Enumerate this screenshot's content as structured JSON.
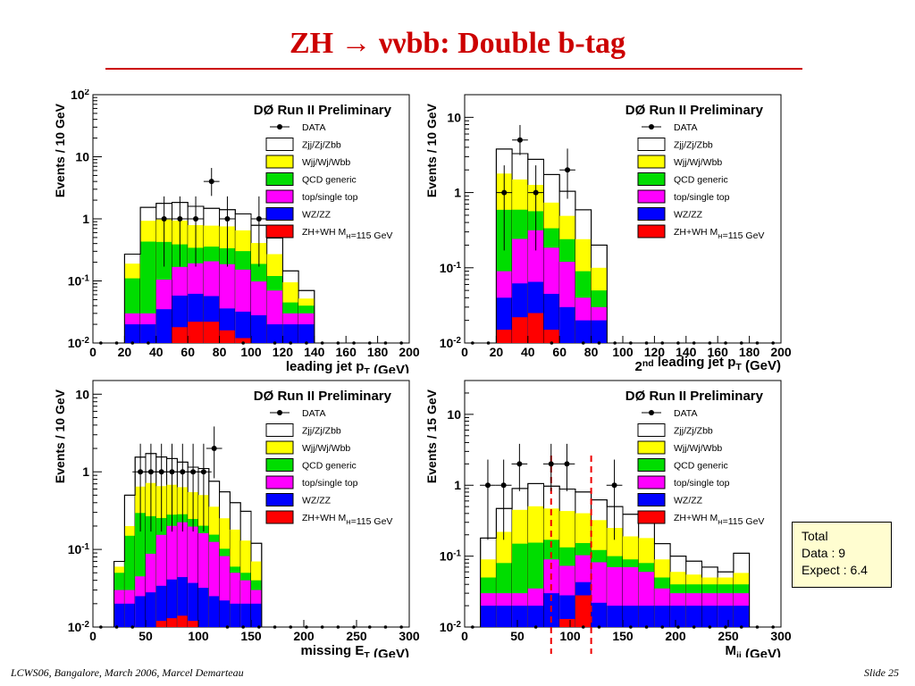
{
  "slide": {
    "title": "ZH → ννbb: Double b-tag",
    "footer_left": "LCWS06, Bangalore, March 2006, Marcel Demarteau",
    "footer_right": "Slide 25"
  },
  "totals": {
    "line1": "Total",
    "line2": "Data : 9",
    "line3": "Expect : 6.4"
  },
  "legend": [
    {
      "label": "DATA",
      "style": "marker"
    },
    {
      "label": "Zjj/Zj/Zbb",
      "color": "#ffffff"
    },
    {
      "label": "Wjj/Wj/Wbb",
      "color": "#ffff00"
    },
    {
      "label": "QCD generic",
      "color": "#00dd00"
    },
    {
      "label": "top/single top",
      "color": "#ff00ff"
    },
    {
      "label": "WZ/ZZ",
      "color": "#0000ff"
    },
    {
      "label": "ZH+WH M_H=115 GeV",
      "color": "#ff0000"
    }
  ],
  "chart_data": [
    {
      "type": "bar",
      "header": "DØ Run II Preliminary",
      "xlabel": "leading jet p_T (GeV)",
      "ylabel": "Events / 10 GeV",
      "xlim": [
        0,
        200
      ],
      "ylim": [
        0.01,
        100
      ],
      "log_y": true,
      "xticks": [
        0,
        20,
        40,
        60,
        80,
        100,
        120,
        140,
        160,
        180,
        200
      ],
      "yticks": [
        {
          "v": 0.01,
          "t": "10^-2"
        },
        {
          "v": 0.1,
          "t": "10^-1"
        },
        {
          "v": 1,
          "t": "1"
        },
        {
          "v": 10,
          "t": "10"
        },
        {
          "v": 100,
          "t": "10^2"
        }
      ],
      "bin_edges": [
        20,
        30,
        40,
        50,
        60,
        70,
        80,
        90,
        100,
        110,
        120,
        130,
        140
      ],
      "stack": {
        "Zjj/Zj/Zbb": [
          0.08,
          0.6,
          0.8,
          0.9,
          0.8,
          0.7,
          0.65,
          0.55,
          0.38,
          0.22,
          0.05,
          0.018
        ],
        "Wjj/Wj/Wbb": [
          0.08,
          0.5,
          0.55,
          0.55,
          0.45,
          0.42,
          0.42,
          0.35,
          0.22,
          0.15,
          0.05,
          0.012
        ],
        "QCD generic": [
          0.08,
          0.4,
          0.32,
          0.22,
          0.15,
          0.15,
          0.15,
          0.15,
          0.09,
          0.05,
          0.015,
          0.01
        ],
        "top/single top": [
          0.01,
          0.01,
          0.07,
          0.11,
          0.13,
          0.15,
          0.15,
          0.12,
          0.07,
          0.05,
          0.01,
          0.01
        ],
        "WZ/ZZ": [
          0.01,
          0.01,
          0.025,
          0.04,
          0.04,
          0.035,
          0.02,
          0.02,
          0.018,
          0.01,
          0.01,
          0.01
        ],
        "ZH+WH M_H=115 GeV": [
          0.01,
          0.01,
          0.01,
          0.018,
          0.022,
          0.022,
          0.016,
          0.012,
          0.01,
          0.01,
          0.01,
          0.01
        ]
      },
      "data_points": [
        {
          "x": 45,
          "y": 1
        },
        {
          "x": 55,
          "y": 1
        },
        {
          "x": 65,
          "y": 1
        },
        {
          "x": 75,
          "y": 4
        },
        {
          "x": 85,
          "y": 1
        },
        {
          "x": 105,
          "y": 1
        }
      ],
      "legend_visible": true
    },
    {
      "type": "bar",
      "header": "DØ Run II Preliminary",
      "xlabel": "2^nd leading jet p_T (GeV)",
      "ylabel": "Events / 10 GeV",
      "xlim": [
        0,
        200
      ],
      "ylim": [
        0.01,
        20
      ],
      "log_y": true,
      "xticks": [
        0,
        20,
        40,
        60,
        80,
        100,
        120,
        140,
        160,
        180,
        200
      ],
      "yticks": [
        {
          "v": 0.01,
          "t": "10^-2"
        },
        {
          "v": 0.1,
          "t": "10^-1"
        },
        {
          "v": 1,
          "t": "1"
        },
        {
          "v": 10,
          "t": "10"
        }
      ],
      "bin_edges": [
        20,
        30,
        40,
        50,
        60,
        70,
        80,
        90
      ],
      "stack": {
        "Zjj/Zj/Zbb": [
          2.0,
          1.8,
          1.5,
          1.0,
          0.55,
          0.35,
          0.1
        ],
        "Wjj/Wj/Wbb": [
          1.2,
          0.9,
          0.7,
          0.4,
          0.25,
          0.15,
          0.05
        ],
        "QCD generic": [
          0.5,
          0.35,
          0.25,
          0.15,
          0.12,
          0.05,
          0.02
        ],
        "top/single top": [
          0.05,
          0.18,
          0.25,
          0.14,
          0.09,
          0.02,
          0.01
        ],
        "WZ/ZZ": [
          0.025,
          0.04,
          0.04,
          0.03,
          0.02,
          0.01,
          0.01
        ],
        "ZH+WH M_H=115 GeV": [
          0.015,
          0.022,
          0.025,
          0.015,
          0.01,
          0.01,
          0.01
        ]
      },
      "data_points": [
        {
          "x": 25,
          "y": 1
        },
        {
          "x": 35,
          "y": 5
        },
        {
          "x": 45,
          "y": 1
        },
        {
          "x": 65,
          "y": 2
        }
      ],
      "legend_visible": true
    },
    {
      "type": "bar",
      "header": "DØ Run II Preliminary",
      "xlabel": "missing E_T (GeV)",
      "ylabel": "Events / 10 GeV",
      "xlim": [
        0,
        300
      ],
      "ylim": [
        0.01,
        15
      ],
      "log_y": true,
      "xticks": [
        0,
        50,
        100,
        150,
        200,
        250,
        300
      ],
      "yticks": [
        {
          "v": 0.01,
          "t": "10^-2"
        },
        {
          "v": 0.1,
          "t": "10^-1"
        },
        {
          "v": 1,
          "t": "1"
        },
        {
          "v": 10,
          "t": "10"
        }
      ],
      "bin_edges": [
        20,
        30,
        40,
        50,
        60,
        70,
        80,
        90,
        100,
        110,
        120,
        130,
        140,
        150,
        160
      ],
      "stack": {
        "Zjj/Zj/Zbb": [
          0.01,
          0.3,
          0.9,
          1.0,
          0.9,
          0.8,
          0.7,
          0.6,
          0.6,
          0.4,
          0.3,
          0.22,
          0.18,
          0.05
        ],
        "Wjj/Wj/Wbb": [
          0.01,
          0.05,
          0.35,
          0.45,
          0.4,
          0.4,
          0.35,
          0.3,
          0.3,
          0.2,
          0.15,
          0.12,
          0.08,
          0.03
        ],
        "QCD generic": [
          0.02,
          0.12,
          0.25,
          0.18,
          0.1,
          0.08,
          0.06,
          0.05,
          0.04,
          0.03,
          0.02,
          0.01,
          0.01,
          0.01
        ],
        "top/single top": [
          0.01,
          0.01,
          0.02,
          0.06,
          0.12,
          0.16,
          0.18,
          0.16,
          0.13,
          0.1,
          0.06,
          0.03,
          0.02,
          0.01
        ],
        "WZ/ZZ": [
          0.01,
          0.01,
          0.015,
          0.018,
          0.022,
          0.028,
          0.03,
          0.025,
          0.022,
          0.015,
          0.012,
          0.01,
          0.01,
          0.01
        ],
        "ZH+WH M_H=115 GeV": [
          0.01,
          0.01,
          0.01,
          0.01,
          0.012,
          0.013,
          0.014,
          0.012,
          0.01,
          0.01,
          0.01,
          0.01,
          0.01,
          0.01
        ]
      },
      "data_points": [
        {
          "x": 45,
          "y": 1
        },
        {
          "x": 55,
          "y": 1
        },
        {
          "x": 65,
          "y": 1
        },
        {
          "x": 75,
          "y": 1
        },
        {
          "x": 85,
          "y": 1
        },
        {
          "x": 95,
          "y": 1
        },
        {
          "x": 105,
          "y": 1
        },
        {
          "x": 115,
          "y": 2
        }
      ],
      "legend_visible": true
    },
    {
      "type": "bar",
      "header": "DØ Run II Preliminary",
      "xlabel": "M_jj (GeV)",
      "ylabel": "Events / 15 GeV",
      "xlim": [
        0,
        300
      ],
      "ylim": [
        0.01,
        30
      ],
      "log_y": true,
      "xticks": [
        0,
        50,
        100,
        150,
        200,
        250,
        300
      ],
      "yticks": [
        {
          "v": 0.01,
          "t": "10^-2"
        },
        {
          "v": 0.1,
          "t": "10^-1"
        },
        {
          "v": 1,
          "t": "1"
        },
        {
          "v": 10,
          "t": "10"
        }
      ],
      "bin_edges": [
        15,
        30,
        45,
        60,
        75,
        90,
        105,
        120,
        135,
        150,
        165,
        180,
        195,
        210,
        225,
        240,
        255,
        270
      ],
      "stack": {
        "Zjj/Zj/Zbb": [
          0.09,
          0.25,
          0.45,
          0.55,
          0.5,
          0.45,
          0.4,
          0.3,
          0.25,
          0.2,
          0.15,
          0.06,
          0.04,
          0.03,
          0.02,
          0.01,
          0.052
        ],
        "Wjj/Wj/Wbb": [
          0.04,
          0.14,
          0.3,
          0.35,
          0.3,
          0.3,
          0.25,
          0.2,
          0.15,
          0.1,
          0.1,
          0.04,
          0.02,
          0.015,
          0.01,
          0.01,
          0.018
        ],
        "QCD generic": [
          0.02,
          0.05,
          0.12,
          0.12,
          0.08,
          0.06,
          0.05,
          0.04,
          0.03,
          0.02,
          0.02,
          0.015,
          0.01,
          0.01,
          0.01,
          0.01,
          0.01
        ],
        "top/single top": [
          0.01,
          0.01,
          0.01,
          0.015,
          0.06,
          0.045,
          0.06,
          0.06,
          0.05,
          0.05,
          0.04,
          0.015,
          0.01,
          0.01,
          0.01,
          0.01,
          0.01
        ],
        "WZ/ZZ": [
          0.01,
          0.01,
          0.01,
          0.01,
          0.02,
          0.015,
          0.015,
          0.012,
          0.01,
          0.01,
          0.01,
          0.01,
          0.01,
          0.01,
          0.01,
          0.01,
          0.01
        ],
        "ZH+WH M_H=115 GeV": [
          0.01,
          0.01,
          0.01,
          0.01,
          0.01,
          0.013,
          0.028,
          0.01,
          0.01,
          0.01,
          0.01,
          0.01,
          0.01,
          0.01,
          0.01,
          0.01,
          0.01
        ]
      },
      "data_points": [
        {
          "x": 22,
          "y": 1
        },
        {
          "x": 37,
          "y": 1
        },
        {
          "x": 52,
          "y": 2
        },
        {
          "x": 82,
          "y": 2
        },
        {
          "x": 97,
          "y": 2
        },
        {
          "x": 142,
          "y": 1
        }
      ],
      "signal_window": [
        82,
        120
      ],
      "legend_visible": true
    }
  ]
}
